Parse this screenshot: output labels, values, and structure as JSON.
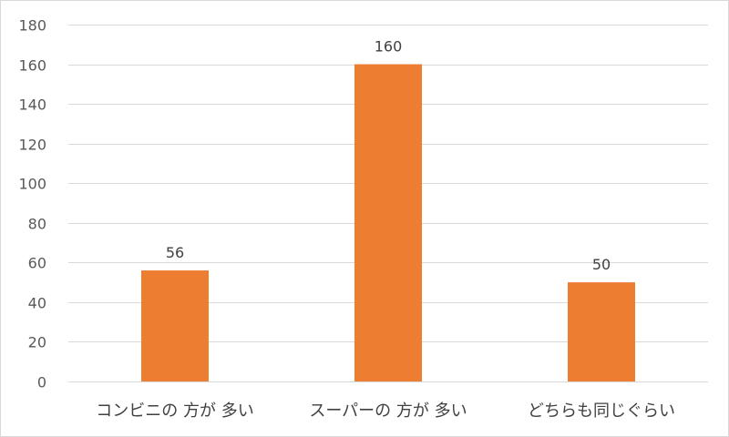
{
  "chart_data": {
    "type": "bar",
    "title": "",
    "xlabel": "",
    "ylabel": "",
    "categories": [
      "コンビニの 方が 多い",
      "スーパーの 方が 多い",
      "どちらも同じぐらい"
    ],
    "values": [
      56,
      160,
      50
    ],
    "data_labels": [
      "56",
      "160",
      "50"
    ],
    "ylim": [
      0,
      180
    ],
    "yticks": [
      0,
      20,
      40,
      60,
      80,
      100,
      120,
      140,
      160,
      180
    ],
    "ytick_labels": [
      "0",
      "20",
      "40",
      "60",
      "80",
      "100",
      "120",
      "140",
      "160",
      "180"
    ],
    "grid": true,
    "legend": "none",
    "colors": {
      "bar": "#ED7D31",
      "grid": "#D9D9D9",
      "tick_text": "#595959",
      "label_text": "#404040"
    }
  }
}
